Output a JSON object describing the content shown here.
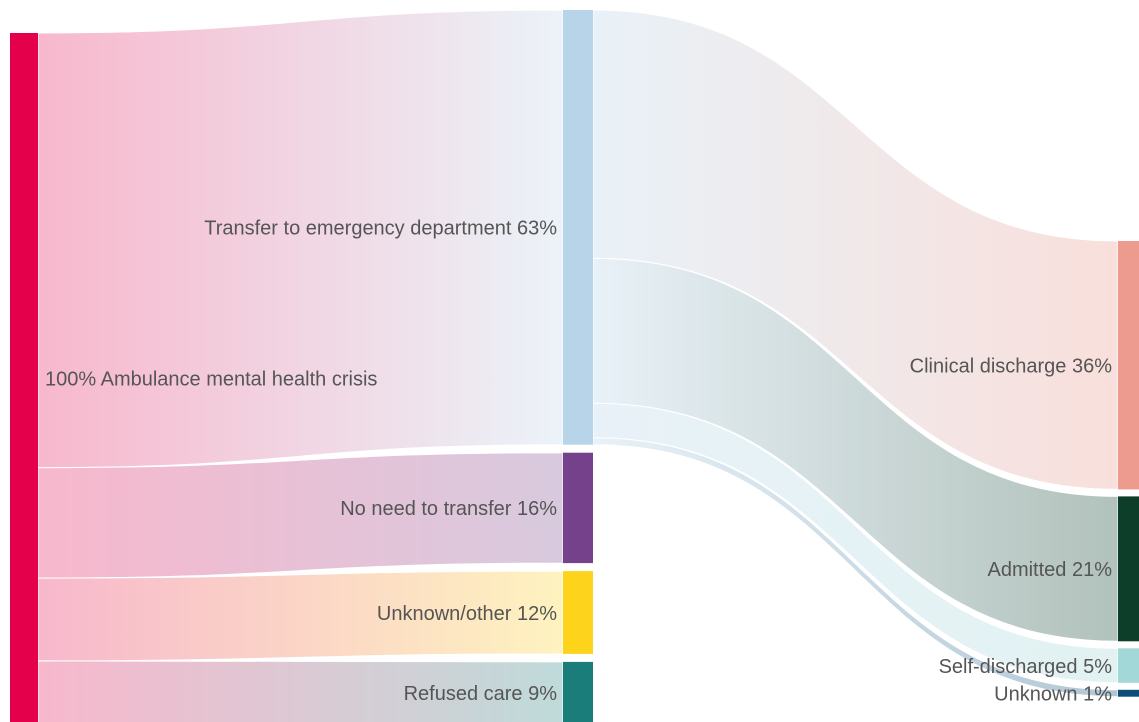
{
  "chart_data": {
    "type": "sankey",
    "nodes": [
      {
        "label": "100% Ambulance mental health crisis",
        "value": 100,
        "color": "#e4004b"
      },
      {
        "label": "Transfer to emergency department 63%",
        "value": 63,
        "color": "#b8d4e8"
      },
      {
        "label": "No need to transfer 16%",
        "value": 16,
        "color": "#74418a"
      },
      {
        "label": "Unknown/other 12%",
        "value": 12,
        "color": "#fdd31b"
      },
      {
        "label": "Refused care 9%",
        "value": 9,
        "color": "#1a7d7a"
      },
      {
        "label": "Clinical discharge 36%",
        "value": 36,
        "color": "#ec9b8e"
      },
      {
        "label": "Admitted 21%",
        "value": 21,
        "color": "#0c3e2a"
      },
      {
        "label": "Self-discharged 5%",
        "value": 5,
        "color": "#a3d8d8"
      },
      {
        "label": "Unknown 1%",
        "value": 1,
        "color": "#0b4e7a"
      }
    ],
    "links": [
      {
        "source": 0,
        "target": 1,
        "value": 63
      },
      {
        "source": 0,
        "target": 2,
        "value": 16
      },
      {
        "source": 0,
        "target": 3,
        "value": 12
      },
      {
        "source": 0,
        "target": 4,
        "value": 9
      },
      {
        "source": 1,
        "target": 5,
        "value": 36
      },
      {
        "source": 1,
        "target": 6,
        "value": 21
      },
      {
        "source": 1,
        "target": 7,
        "value": 5
      },
      {
        "source": 1,
        "target": 8,
        "value": 1
      }
    ]
  }
}
